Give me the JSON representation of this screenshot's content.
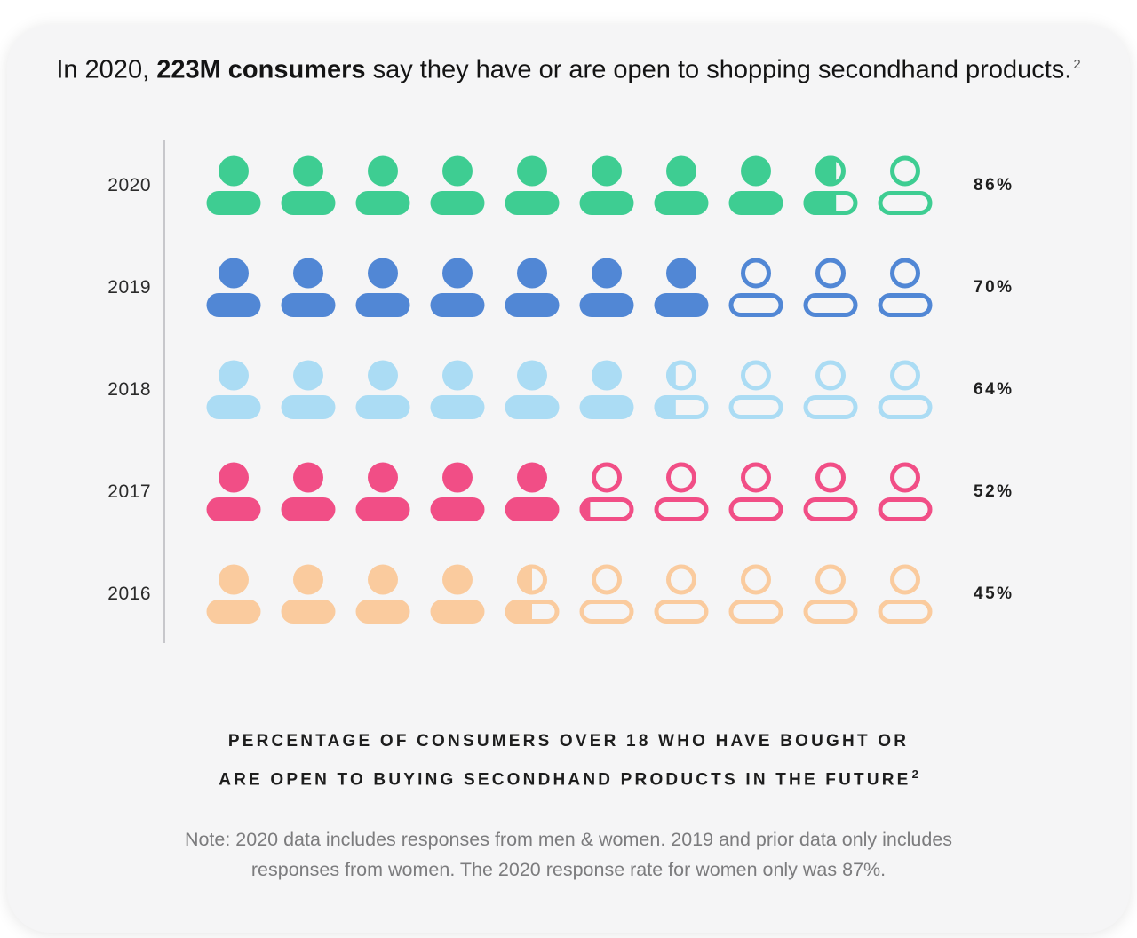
{
  "title": {
    "prefix": "In 2020, ",
    "bold": "223M consumers",
    "suffix": " say they have or are open to shopping secondhand products.",
    "superscript": "2"
  },
  "footer": {
    "caption_line1": "PERCENTAGE OF CONSUMERS OVER 18 WHO HAVE BOUGHT OR",
    "caption_line2": "ARE OPEN TO BUYING SECONDHAND PRODUCTS IN THE FUTURE",
    "caption_superscript": "2",
    "note": "Note: 2020 data includes responses from men & women. 2019 and prior data only includes responses from women. The 2020 response rate for women only was 87%."
  },
  "chart_data": {
    "type": "pictogram-bar",
    "title": "In 2020, 223M consumers say they have or are open to shopping secondhand products.",
    "caption": "PERCENTAGE OF CONSUMERS OVER 18 WHO HAVE BOUGHT OR ARE OPEN TO BUYING SECONDHAND PRODUCTS IN THE FUTURE",
    "icon": "person-icon",
    "icons_per_row": 10,
    "icon_unit_percent": 10,
    "categories": [
      "2020",
      "2019",
      "2018",
      "2017",
      "2016"
    ],
    "values": [
      86,
      70,
      64,
      52,
      45
    ],
    "value_labels": [
      "86%",
      "70%",
      "64%",
      "52%",
      "45%"
    ],
    "colors": [
      "#3ecd92",
      "#5187d5",
      "#abdcf4",
      "#f14e86",
      "#facb9e"
    ],
    "legend": "none",
    "axis_line_color": "#c7c7cb",
    "background_color": "#f5f5f6"
  }
}
